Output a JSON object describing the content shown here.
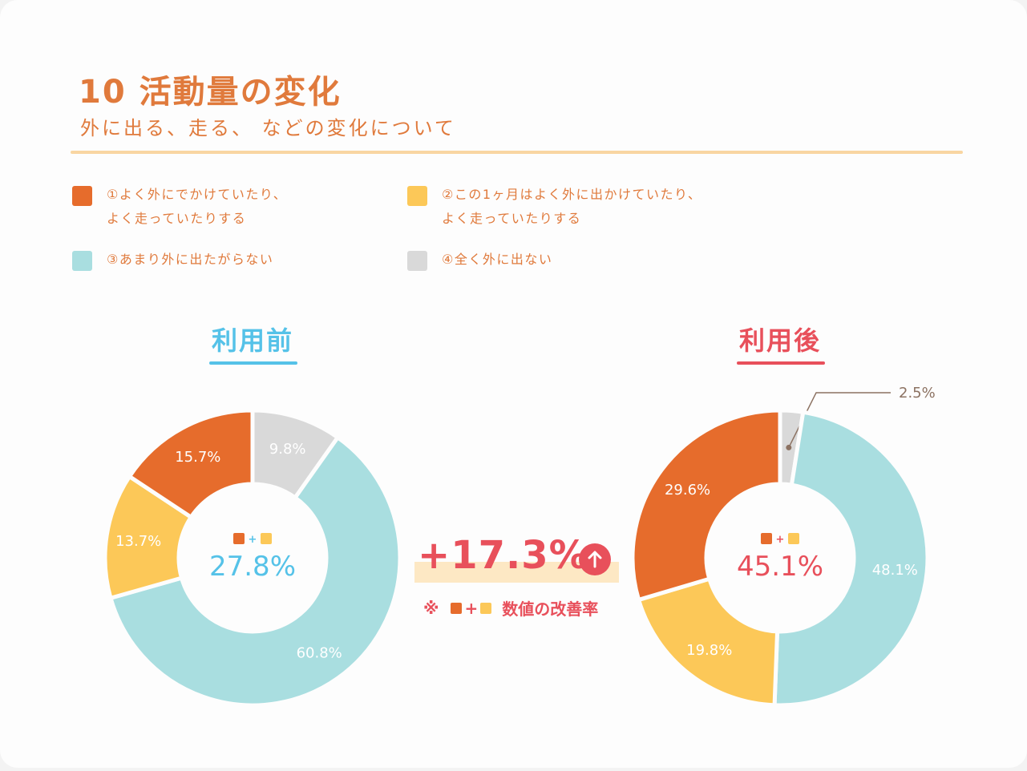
{
  "header": {
    "title": "10 活動量の変化",
    "subtitle": "外に出る、走る、 などの変化について"
  },
  "legend": [
    {
      "label": "①よく外にでかけていたり、\nよく走っていたりする",
      "color": "#e66c2c"
    },
    {
      "label": "②この1ヶ月はよく外に出かけていたり、\nよく走っていたりする",
      "color": "#fcc858"
    },
    {
      "label": "③あまり外に出たがらない",
      "color": "#a9dee0"
    },
    {
      "label": "④全く外に出ない",
      "color": "#d9d9d9"
    }
  ],
  "plus_sign": "+",
  "improvement": {
    "value": "+17.3%",
    "note_prefix": "※",
    "note_suffix": "数値の改善率",
    "color": "#e8505b",
    "arrow_icon": "arrow-up-icon"
  },
  "chart_data": [
    {
      "type": "pie",
      "title": "利用前",
      "title_color": "#55c2e8",
      "categories": [
        "①",
        "②",
        "③",
        "④"
      ],
      "values": [
        15.7,
        13.7,
        60.8,
        9.8
      ],
      "labels": [
        "15.7%",
        "13.7%",
        "60.8%",
        "9.8%"
      ],
      "center_label": "27.8%"
    },
    {
      "type": "pie",
      "title": "利用後",
      "title_color": "#e8505b",
      "categories": [
        "①",
        "②",
        "③",
        "④"
      ],
      "values": [
        29.6,
        19.8,
        48.1,
        2.5
      ],
      "labels": [
        "29.6%",
        "19.8%",
        "48.1%",
        "2.5%"
      ],
      "center_label": "45.1%"
    }
  ]
}
